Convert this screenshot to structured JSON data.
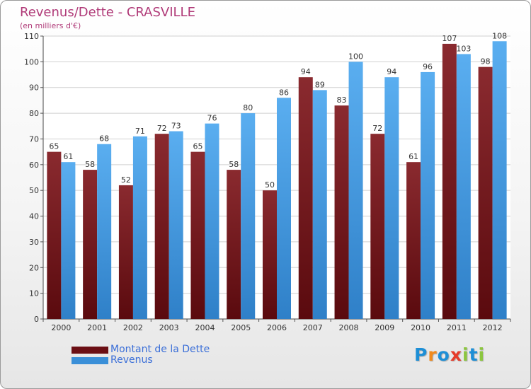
{
  "header": {
    "title": "Revenus/Dette - CRASVILLE",
    "subtitle": "(en milliers d'€)"
  },
  "chart_data": {
    "type": "bar",
    "categories": [
      "2000",
      "2001",
      "2002",
      "2003",
      "2004",
      "2005",
      "2006",
      "2007",
      "2008",
      "2009",
      "2010",
      "2011",
      "2012"
    ],
    "series": [
      {
        "name": "Montant de la Dette",
        "color": "#7a1e24",
        "values": [
          65,
          58,
          52,
          72,
          65,
          58,
          50,
          94,
          83,
          72,
          61,
          107,
          98
        ]
      },
      {
        "name": "Revenus",
        "color": "#4a9ee0",
        "values": [
          61,
          68,
          71,
          73,
          76,
          80,
          86,
          89,
          100,
          94,
          96,
          103,
          108
        ]
      }
    ],
    "ylim": [
      0,
      110
    ],
    "yticks": [
      0,
      10,
      20,
      30,
      40,
      50,
      60,
      70,
      80,
      90,
      100,
      110
    ],
    "grid": true,
    "legend_position": "bottom-left"
  },
  "legend": {
    "items": [
      {
        "label": "Montant de la Dette",
        "color": "#6b0f14"
      },
      {
        "label": "Revenus",
        "color": "#3a8fd8"
      }
    ]
  },
  "logo": {
    "letters": [
      "P",
      "r",
      "o",
      "x",
      "i",
      "t",
      "i"
    ],
    "colors": [
      "#1e8fd6",
      "#f08a1c",
      "#1e8fd6",
      "#e63b2a",
      "#8cc63f",
      "#1e8fd6",
      "#8cc63f"
    ]
  }
}
